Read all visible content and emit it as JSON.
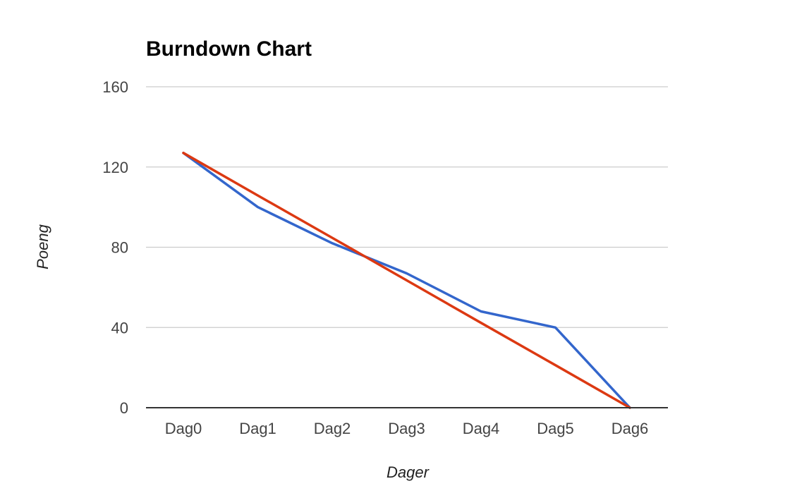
{
  "chart_data": {
    "type": "line",
    "title": "Burndown Chart",
    "xlabel": "Dager",
    "ylabel": "Poeng",
    "categories": [
      "Dag0",
      "Dag1",
      "Dag2",
      "Dag3",
      "Dag4",
      "Dag5",
      "Dag6"
    ],
    "series": [
      {
        "values": [
          127,
          100,
          82,
          67,
          48,
          40,
          0
        ],
        "color": "#3366cc"
      },
      {
        "values": [
          127,
          105.8,
          84.7,
          63.5,
          42.3,
          21.2,
          0
        ],
        "color": "#dc3912"
      }
    ],
    "ylim": [
      0,
      160
    ],
    "yticks": [
      0,
      40,
      80,
      120,
      160
    ],
    "grid": true,
    "legend": "none"
  }
}
